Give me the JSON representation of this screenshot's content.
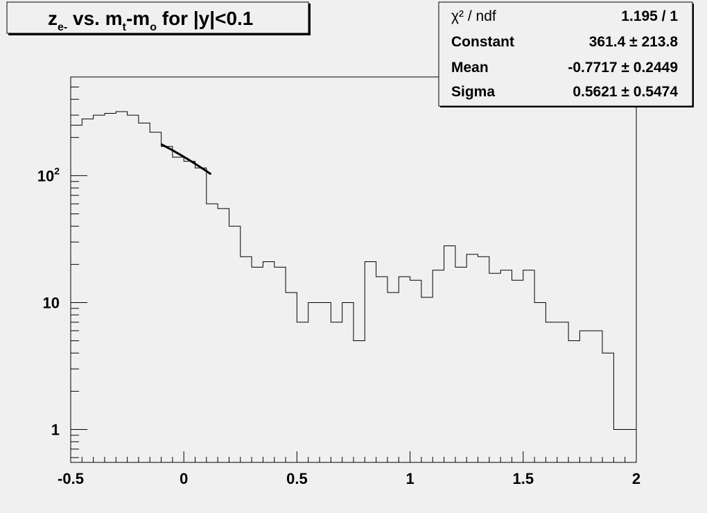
{
  "chart_data": {
    "type": "histogram",
    "title_parts": {
      "z": "z",
      "z_sub": "e-",
      "vs": " vs. m",
      "mt_sub": "t",
      "dash": "-m",
      "mo_sub": "o",
      "tail": " for |y|<0.1"
    },
    "xlabel": "",
    "ylabel": "",
    "xlim": [
      -0.5,
      2.0
    ],
    "ylim": [
      0.55,
      600
    ],
    "yscale": "log",
    "x_ticks": [
      {
        "value": -0.5,
        "label": "-0.5"
      },
      {
        "value": 0,
        "label": "0"
      },
      {
        "value": 0.5,
        "label": "0.5"
      },
      {
        "value": 1,
        "label": "1"
      },
      {
        "value": 1.5,
        "label": "1.5"
      },
      {
        "value": 2,
        "label": "2"
      }
    ],
    "y_ticks": [
      {
        "value": 1,
        "label": "1"
      },
      {
        "value": 10,
        "label": "10"
      },
      {
        "value": 100,
        "label": "10",
        "exponent": "2"
      }
    ],
    "bin_edges_start": -0.5,
    "bin_width": 0.05,
    "values": [
      250,
      280,
      300,
      310,
      320,
      300,
      260,
      220,
      170,
      140,
      130,
      115,
      60,
      55,
      40,
      23,
      19,
      21,
      19,
      12,
      7,
      10,
      10,
      7,
      10,
      5,
      21,
      16,
      12,
      16,
      15,
      11,
      18,
      28,
      19,
      24,
      23,
      17,
      18,
      15,
      18,
      10,
      7,
      7,
      5,
      6,
      6,
      4,
      1,
      1
    ],
    "fit": {
      "function": "gaus",
      "constant": 361.4,
      "mean": -0.7717,
      "sigma": 0.5621,
      "x_range": [
        -0.1,
        0.12
      ]
    },
    "stats": [
      {
        "label": "χ² / ndf",
        "value": "1.195 / 1"
      },
      {
        "label": "Constant",
        "value": "361.4 ± 213.8"
      },
      {
        "label": "Mean",
        "value": "-0.7717 ± 0.2449"
      },
      {
        "label": "Sigma",
        "value": "0.5621 ± 0.5474"
      }
    ]
  }
}
